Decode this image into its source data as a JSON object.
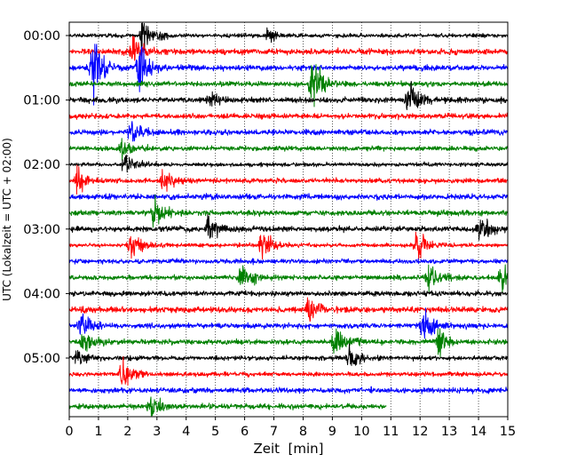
{
  "chart_data": {
    "type": "line",
    "xlabel": "Zeit  [min]",
    "ylabel": "UTC (Lokalzeit = UTC + 02:00)",
    "xlim": [
      0,
      15
    ],
    "x_ticks": [
      "0",
      "1",
      "2",
      "3",
      "4",
      "5",
      "6",
      "7",
      "8",
      "9",
      "10",
      "11",
      "12",
      "13",
      "14",
      "15"
    ],
    "y_ticks": [
      "00:00",
      "01:00",
      "02:00",
      "03:00",
      "04:00",
      "05:00"
    ],
    "grid": "vertical-dotted",
    "trace_interval_min": 15,
    "trace_colors": [
      "#000000",
      "#ff0000",
      "#0000ff",
      "#008000"
    ],
    "last_trace_end_min": 10.85,
    "events": [
      {
        "trace": 0,
        "t": 2.5,
        "amp": 2.5
      },
      {
        "trace": 0,
        "t": 6.8,
        "amp": 0.9
      },
      {
        "trace": 1,
        "t": 2.2,
        "amp": 2.5
      },
      {
        "trace": 2,
        "t": 0.8,
        "amp": 4.0
      },
      {
        "trace": 2,
        "t": 2.4,
        "amp": 3.0
      },
      {
        "trace": 3,
        "t": 8.3,
        "amp": 3.5
      },
      {
        "trace": 4,
        "t": 4.8,
        "amp": 0.7
      },
      {
        "trace": 4,
        "t": 11.6,
        "amp": 2.2
      },
      {
        "trace": 6,
        "t": 2.1,
        "amp": 1.2
      },
      {
        "trace": 7,
        "t": 1.8,
        "amp": 1.2
      },
      {
        "trace": 8,
        "t": 1.9,
        "amp": 1.5
      },
      {
        "trace": 9,
        "t": 0.3,
        "amp": 1.6
      },
      {
        "trace": 9,
        "t": 3.2,
        "amp": 1.6
      },
      {
        "trace": 11,
        "t": 2.9,
        "amp": 2.0
      },
      {
        "trace": 12,
        "t": 4.8,
        "amp": 1.8
      },
      {
        "trace": 12,
        "t": 14.0,
        "amp": 1.8
      },
      {
        "trace": 13,
        "t": 2.1,
        "amp": 2.0
      },
      {
        "trace": 13,
        "t": 6.6,
        "amp": 2.0
      },
      {
        "trace": 13,
        "t": 11.9,
        "amp": 2.5
      },
      {
        "trace": 15,
        "t": 5.9,
        "amp": 2.0
      },
      {
        "trace": 15,
        "t": 12.3,
        "amp": 2.0
      },
      {
        "trace": 15,
        "t": 14.8,
        "amp": 1.8
      },
      {
        "trace": 17,
        "t": 8.2,
        "amp": 1.6
      },
      {
        "trace": 18,
        "t": 0.4,
        "amp": 1.6
      },
      {
        "trace": 18,
        "t": 12.1,
        "amp": 2.5
      },
      {
        "trace": 19,
        "t": 0.5,
        "amp": 1.6
      },
      {
        "trace": 19,
        "t": 9.1,
        "amp": 2.5
      },
      {
        "trace": 19,
        "t": 12.6,
        "amp": 1.6
      },
      {
        "trace": 20,
        "t": 0.3,
        "amp": 1.4
      },
      {
        "trace": 20,
        "t": 9.6,
        "amp": 1.3
      },
      {
        "trace": 21,
        "t": 1.8,
        "amp": 1.8
      },
      {
        "trace": 23,
        "t": 2.8,
        "amp": 1.6
      }
    ]
  }
}
